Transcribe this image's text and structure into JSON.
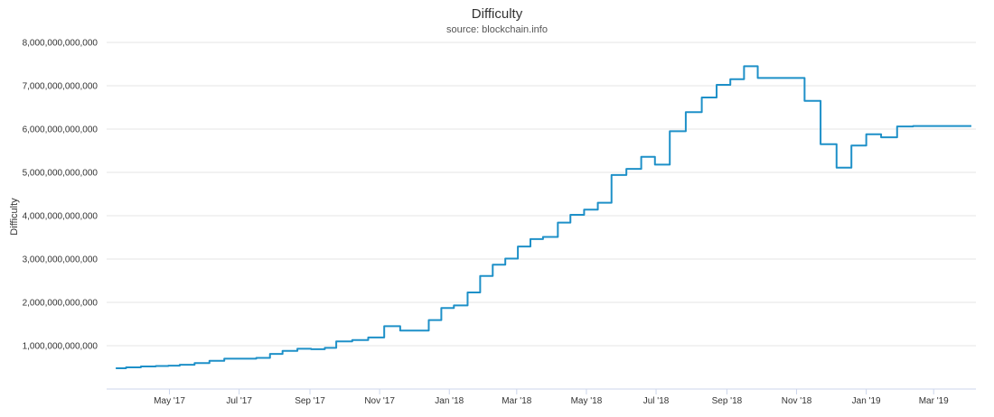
{
  "chart_data": {
    "type": "line",
    "title": "Difficulty",
    "subtitle": "source: blockchain.info",
    "xlabel": "",
    "ylabel": "Difficulty",
    "ylim": [
      0,
      8000000000000
    ],
    "y_ticks": [
      1000000000000,
      2000000000000,
      3000000000000,
      4000000000000,
      5000000000000,
      6000000000000,
      7000000000000,
      8000000000000
    ],
    "y_tick_labels": [
      "1,000,000,000,000",
      "2,000,000,000,000",
      "3,000,000,000,000",
      "4,000,000,000,000",
      "5,000,000,000,000",
      "6,000,000,000,000",
      "7,000,000,000,000",
      "8,000,000,000,000"
    ],
    "xlim": [
      "2017-03-07",
      "2019-04-07"
    ],
    "x_ticks": [
      "2017-05-01",
      "2017-07-01",
      "2017-09-01",
      "2017-11-01",
      "2018-01-01",
      "2018-03-01",
      "2018-05-01",
      "2018-07-01",
      "2018-09-01",
      "2018-11-01",
      "2019-01-01",
      "2019-03-01"
    ],
    "x_tick_labels": [
      "May '17",
      "Jul '17",
      "Sep '17",
      "Nov '17",
      "Jan '18",
      "Mar '18",
      "May '18",
      "Jul '18",
      "Sep '18",
      "Nov '18",
      "Jan '19",
      "Mar '19"
    ],
    "grid": true,
    "legend": "none",
    "line_color": "#1e90c8",
    "series": [
      {
        "style": "step",
        "x": [
          "2017-03-15",
          "2017-03-24",
          "2017-04-06",
          "2017-04-19",
          "2017-04-30",
          "2017-05-10",
          "2017-05-23",
          "2017-06-05",
          "2017-06-18",
          "2017-07-02",
          "2017-07-16",
          "2017-07-28",
          "2017-08-08",
          "2017-08-21",
          "2017-09-02",
          "2017-09-14",
          "2017-09-24",
          "2017-10-08",
          "2017-10-22",
          "2017-11-05",
          "2017-11-19",
          "2017-12-02",
          "2017-12-14",
          "2017-12-25",
          "2018-01-05",
          "2018-01-17",
          "2018-01-28",
          "2018-02-08",
          "2018-02-19",
          "2018-03-02",
          "2018-03-13",
          "2018-03-24",
          "2018-04-06",
          "2018-04-17",
          "2018-04-29",
          "2018-05-11",
          "2018-05-23",
          "2018-06-05",
          "2018-06-18",
          "2018-06-30",
          "2018-07-13",
          "2018-07-27",
          "2018-08-10",
          "2018-08-23",
          "2018-09-04",
          "2018-09-16",
          "2018-09-28",
          "2018-10-11",
          "2018-10-25",
          "2018-11-08",
          "2018-11-22",
          "2018-12-06",
          "2018-12-19",
          "2019-01-01",
          "2019-01-14",
          "2019-01-28",
          "2019-02-11",
          "2019-02-24",
          "2019-03-12",
          "2019-03-29",
          "2019-04-03"
        ],
        "values": [
          480000000000,
          500000000000,
          520000000000,
          530000000000,
          540000000000,
          560000000000,
          600000000000,
          650000000000,
          700000000000,
          700000000000,
          720000000000,
          810000000000,
          880000000000,
          930000000000,
          920000000000,
          950000000000,
          1100000000000,
          1130000000000,
          1190000000000,
          1450000000000,
          1350000000000,
          1350000000000,
          1590000000000,
          1870000000000,
          1930000000000,
          2230000000000,
          2610000000000,
          2870000000000,
          3010000000000,
          3290000000000,
          3460000000000,
          3510000000000,
          3840000000000,
          4020000000000,
          4140000000000,
          4300000000000,
          4940000000000,
          5080000000000,
          5360000000000,
          5180000000000,
          5950000000000,
          6390000000000,
          6730000000000,
          7020000000000,
          7150000000000,
          7450000000000,
          7180000000000,
          7180000000000,
          7180000000000,
          6650000000000,
          5650000000000,
          5110000000000,
          5620000000000,
          5880000000000,
          5810000000000,
          6060000000000,
          6070000000000,
          6070000000000,
          6070000000000,
          6070000000000,
          6070000000000
        ]
      }
    ]
  }
}
